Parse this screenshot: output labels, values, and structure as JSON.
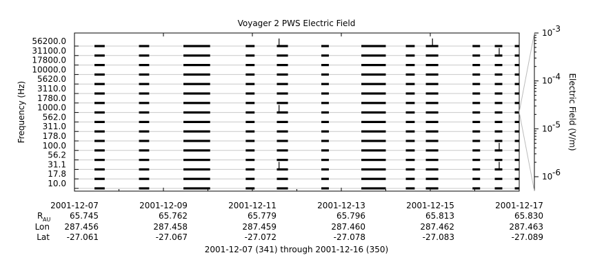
{
  "chart_data": {
    "type": "line",
    "title": "Voyager 2 PWS Electric Field",
    "ylabel": "Frequency (Hz)",
    "colorbar_label": "Electric Field (V/m)",
    "colorbar_ticks": [
      {
        "mantissa": "10",
        "exp": "-3",
        "value": 0.001
      },
      {
        "mantissa": "10",
        "exp": "-4",
        "value": 0.0001
      },
      {
        "mantissa": "10",
        "exp": "-5",
        "value": 1e-05
      },
      {
        "mantissa": "10",
        "exp": "-6",
        "value": 1e-06
      }
    ],
    "colorbar_range": [
      5e-07,
      0.001
    ],
    "frequency_channels": [
      "56200.0",
      "31100.0",
      "17800.0",
      "10000.0",
      "5620.0",
      "3110.0",
      "1780.0",
      "1000.0",
      "562.0",
      "311.0",
      "178.0",
      "100.0",
      "56.2",
      "31.1",
      "17.8",
      "10.0"
    ],
    "x_tick_dates": [
      "2001-12-07",
      "2001-12-09",
      "2001-12-11",
      "2001-12-13",
      "2001-12-15",
      "2001-12-17"
    ],
    "x_tick_days": [
      0,
      2,
      4,
      6,
      8,
      10
    ],
    "xlim_days": [
      0,
      10
    ],
    "ephemeris_labels": {
      "r_main": "R",
      "r_sub": "AU",
      "lon": "Lon",
      "lat": "Lat"
    },
    "ephemeris": {
      "R": [
        "65.745",
        "65.762",
        "65.779",
        "65.796",
        "65.813",
        "65.830"
      ],
      "Lon": [
        "287.456",
        "287.458",
        "287.459",
        "287.460",
        "287.462",
        "287.463"
      ],
      "Lat": [
        "-27.061",
        "-27.067",
        "-27.072",
        "-27.078",
        "-27.083",
        "-27.089"
      ]
    },
    "coverage_intervals_days": [
      [
        0.45,
        0.68
      ],
      [
        1.45,
        1.68
      ],
      [
        2.45,
        3.05
      ],
      [
        3.85,
        4.05
      ],
      [
        4.55,
        4.8
      ],
      [
        5.55,
        5.72
      ],
      [
        6.45,
        7.0
      ],
      [
        7.45,
        7.65
      ],
      [
        7.9,
        8.18
      ],
      [
        8.95,
        9.12
      ],
      [
        9.45,
        9.62
      ],
      [
        9.9,
        10.0
      ]
    ],
    "spikes": [
      {
        "day": 4.6,
        "channel_level": "56200.0"
      },
      {
        "day": 4.6,
        "channel_level": "1000.0"
      },
      {
        "day": 4.6,
        "channel_level": "31.1"
      },
      {
        "day": 8.05,
        "channel_level": "56200.0"
      },
      {
        "day": 9.55,
        "channel_level": "31100.0"
      },
      {
        "day": 9.55,
        "channel_level": "100.0"
      },
      {
        "day": 9.55,
        "channel_level": "31.1"
      }
    ],
    "footer": "2001-12-07 (341) through 2001-12-16 (350)"
  }
}
